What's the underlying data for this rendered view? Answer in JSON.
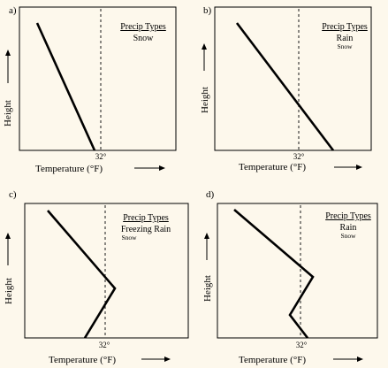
{
  "panels": [
    {
      "id": "a",
      "label": "a)",
      "precip_title": "Precip Types",
      "precip_main": "Snow",
      "precip_small": "",
      "freezing_label": "32°",
      "y_axis_label": "Height",
      "x_axis_label": "Temperature (°F)"
    },
    {
      "id": "b",
      "label": "b)",
      "precip_title": "Precip Types",
      "precip_main": "Rain",
      "precip_small": "Snow",
      "freezing_label": "32°",
      "y_axis_label": "Height",
      "x_axis_label": "Temperature (°F)"
    },
    {
      "id": "c",
      "label": "c)",
      "precip_title": "Precip Types",
      "precip_main": "Freezing Rain",
      "precip_small": "Snow",
      "freezing_label": "32°",
      "y_axis_label": "Height",
      "x_axis_label": "Temperature (°F)"
    },
    {
      "id": "d",
      "label": "d)",
      "precip_title": "Precip Types",
      "precip_main": "Rain",
      "precip_small": "Snow",
      "freezing_label": "32°",
      "y_axis_label": "Height",
      "x_axis_label": "Temperature (°F)"
    }
  ],
  "colors": {
    "background": "#fdf8ec",
    "ink": "#000000"
  }
}
